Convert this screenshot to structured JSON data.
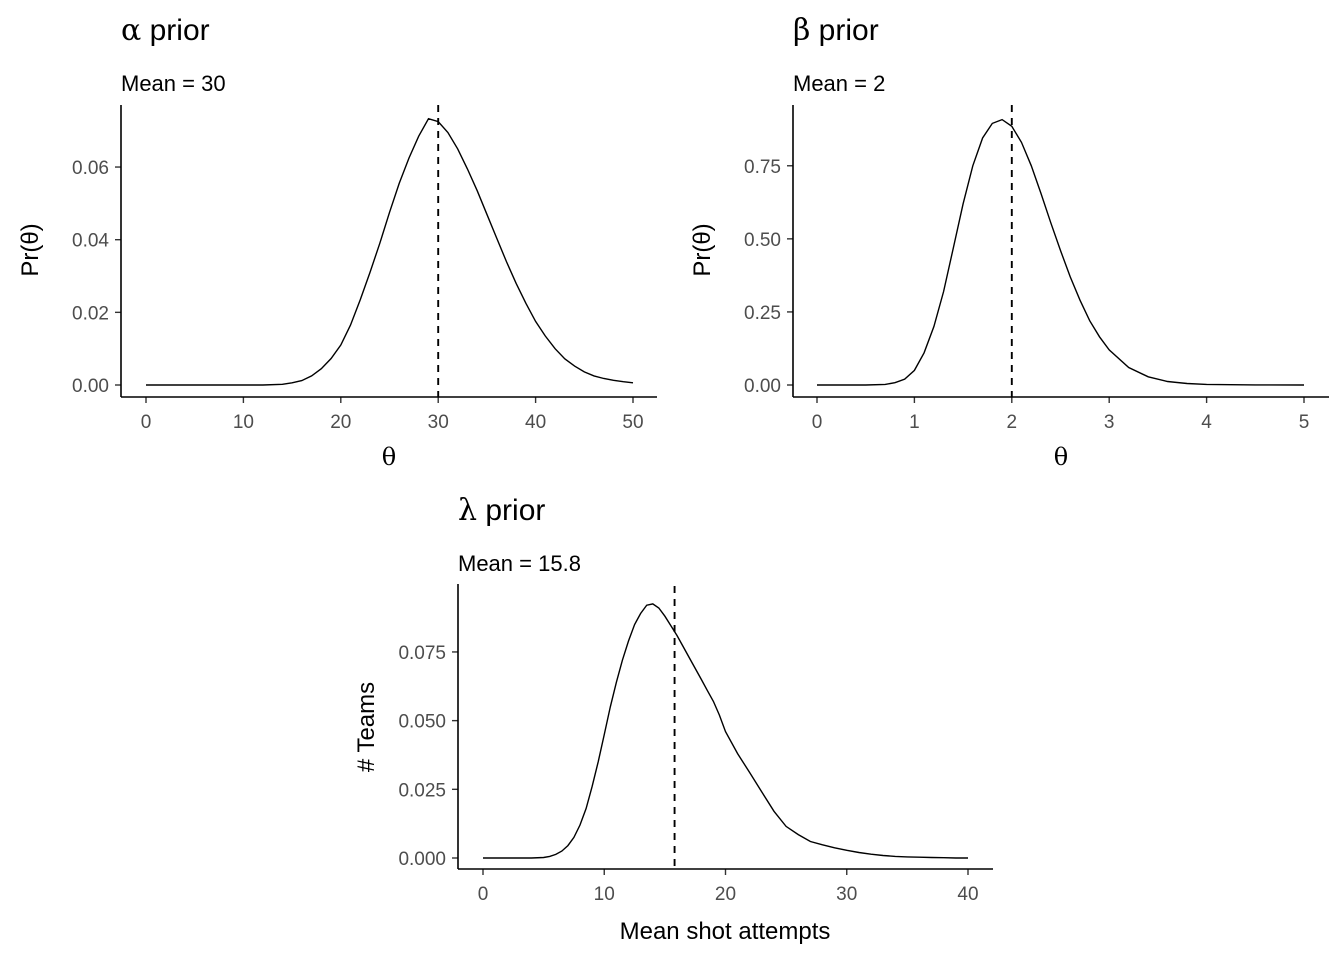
{
  "chart_data": [
    {
      "type": "line",
      "title_symbol": "α",
      "title_text": " prior",
      "subtitle": "Mean =  30",
      "xlabel": "θ",
      "ylabel": "Pr(θ)",
      "xlim": [
        0,
        50
      ],
      "ylim": [
        0,
        0.0735
      ],
      "xticks": [
        0,
        10,
        20,
        30,
        40,
        50
      ],
      "yticks": [
        0.0,
        0.02,
        0.04,
        0.06
      ],
      "ytick_labels": [
        "0.00",
        "0.02",
        "0.04",
        "0.06"
      ],
      "mean": 30,
      "series": [
        {
          "x": [
            0,
            4,
            8,
            10,
            12,
            14,
            15,
            16,
            17,
            18,
            19,
            20,
            21,
            22,
            23,
            24,
            25,
            26,
            27,
            28,
            29,
            30,
            31,
            32,
            33,
            34,
            35,
            36,
            37,
            38,
            39,
            40,
            41,
            42,
            43,
            44,
            45,
            46,
            47,
            48,
            49,
            50
          ],
          "y": [
            0,
            0,
            0,
            0,
            0,
            0.0002,
            0.0006,
            0.0012,
            0.0025,
            0.0045,
            0.0073,
            0.011,
            0.0165,
            0.0235,
            0.031,
            0.039,
            0.0475,
            0.0555,
            0.0625,
            0.0685,
            0.0733,
            0.0725,
            0.0695,
            0.065,
            0.0595,
            0.0535,
            0.047,
            0.0405,
            0.034,
            0.028,
            0.0225,
            0.0175,
            0.0135,
            0.01,
            0.0072,
            0.0052,
            0.0036,
            0.0025,
            0.0018,
            0.0013,
            0.0009,
            0.0006
          ]
        }
      ]
    },
    {
      "type": "line",
      "title_symbol": "β",
      "title_text": " prior",
      "subtitle": "Mean =  2",
      "xlabel": "θ",
      "ylabel": "Pr(θ)",
      "xlim": [
        0,
        5
      ],
      "ylim": [
        0,
        0.91
      ],
      "xticks": [
        0,
        1,
        2,
        3,
        4,
        5
      ],
      "yticks": [
        0.0,
        0.25,
        0.5,
        0.75
      ],
      "ytick_labels": [
        "0.00",
        "0.25",
        "0.50",
        "0.75"
      ],
      "mean": 2,
      "series": [
        {
          "x": [
            0,
            0.5,
            0.7,
            0.8,
            0.9,
            1.0,
            1.1,
            1.2,
            1.3,
            1.4,
            1.5,
            1.6,
            1.7,
            1.8,
            1.9,
            2.0,
            2.1,
            2.2,
            2.3,
            2.4,
            2.5,
            2.6,
            2.7,
            2.8,
            2.9,
            3.0,
            3.2,
            3.4,
            3.6,
            3.8,
            4.0,
            4.5,
            5.0
          ],
          "y": [
            0,
            0,
            0.002,
            0.008,
            0.02,
            0.05,
            0.11,
            0.2,
            0.32,
            0.47,
            0.62,
            0.75,
            0.845,
            0.895,
            0.908,
            0.885,
            0.83,
            0.75,
            0.655,
            0.555,
            0.46,
            0.37,
            0.29,
            0.22,
            0.165,
            0.12,
            0.06,
            0.028,
            0.012,
            0.005,
            0.002,
            0.0004,
            0
          ]
        }
      ]
    },
    {
      "type": "line",
      "title_symbol": "λ",
      "title_text": " prior",
      "subtitle": "Mean =  15.8",
      "xlabel": "Mean shot attempts",
      "ylabel": "# Teams",
      "xlim": [
        0,
        40
      ],
      "ylim": [
        0,
        0.095
      ],
      "xticks": [
        0,
        10,
        20,
        30,
        40
      ],
      "yticks": [
        0.0,
        0.025,
        0.05,
        0.075
      ],
      "ytick_labels": [
        "0.000",
        "0.025",
        "0.050",
        "0.075"
      ],
      "mean": 15.8,
      "series": [
        {
          "x": [
            0,
            2,
            4,
            5,
            5.5,
            6,
            6.5,
            7,
            7.5,
            8,
            8.5,
            9,
            9.5,
            10,
            10.5,
            11,
            11.5,
            12,
            12.5,
            13,
            13.5,
            14,
            14.5,
            15,
            15.5,
            16,
            16.5,
            17,
            17.5,
            18,
            18.5,
            19,
            19.5,
            20,
            21,
            22,
            23,
            24,
            25,
            26,
            27,
            28,
            29,
            30,
            31,
            32,
            33,
            34,
            35,
            36,
            37,
            38,
            39,
            40
          ],
          "y": [
            0,
            0,
            0,
            0.0002,
            0.0006,
            0.0013,
            0.0025,
            0.0045,
            0.0075,
            0.012,
            0.018,
            0.026,
            0.035,
            0.045,
            0.055,
            0.064,
            0.072,
            0.079,
            0.085,
            0.089,
            0.092,
            0.0925,
            0.091,
            0.088,
            0.0845,
            0.081,
            0.077,
            0.073,
            0.069,
            0.065,
            0.061,
            0.057,
            0.052,
            0.046,
            0.038,
            0.031,
            0.024,
            0.017,
            0.0115,
            0.0085,
            0.006,
            0.0048,
            0.0037,
            0.0028,
            0.002,
            0.0014,
            0.0009,
            0.0006,
            0.0004,
            0.0003,
            0.0002,
            0.0001,
            0,
            0
          ]
        }
      ]
    }
  ]
}
